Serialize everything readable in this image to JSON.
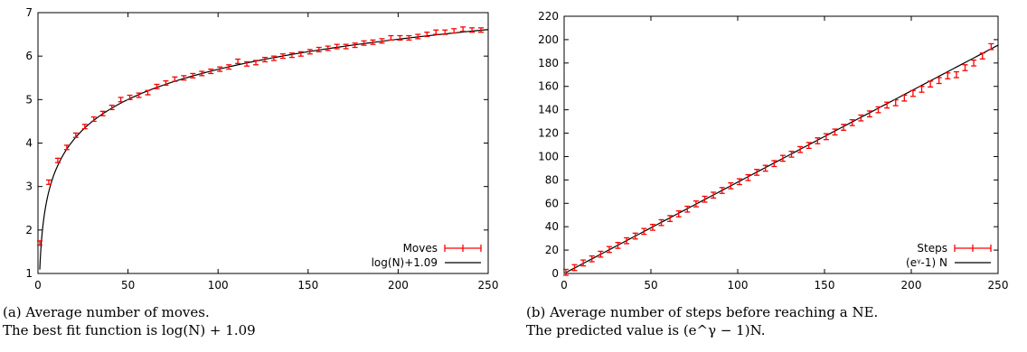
{
  "charts": [
    {
      "caption_line1": "(a) Average number of moves.",
      "caption_line2": "The best fit function is log(N) + 1.09",
      "chart_data": {
        "type": "line",
        "title": "",
        "xlabel": "",
        "ylabel": "",
        "xlim": [
          0,
          250
        ],
        "ylim": [
          1,
          7
        ],
        "xticks": [
          0,
          50,
          100,
          150,
          200,
          250
        ],
        "yticks": [
          1,
          2,
          3,
          4,
          5,
          6,
          7
        ],
        "grid": false,
        "legend_position": "bottom-right",
        "series": [
          {
            "name": "Moves",
            "kind": "errorbars",
            "color": "#ff0000",
            "x": [
              1,
              6,
              11,
              16,
              21,
              26,
              31,
              36,
              41,
              46,
              51,
              56,
              61,
              66,
              71,
              76,
              81,
              86,
              91,
              96,
              101,
              106,
              111,
              116,
              121,
              126,
              131,
              136,
              141,
              146,
              151,
              156,
              161,
              166,
              171,
              176,
              181,
              186,
              191,
              196,
              201,
              206,
              211,
              216,
              221,
              226,
              231,
              236,
              241,
              246
            ],
            "y": [
              1.7,
              3.1,
              3.6,
              3.9,
              4.18,
              4.38,
              4.55,
              4.68,
              4.82,
              5.0,
              5.05,
              5.1,
              5.16,
              5.3,
              5.38,
              5.47,
              5.5,
              5.55,
              5.6,
              5.65,
              5.7,
              5.75,
              5.88,
              5.82,
              5.85,
              5.92,
              5.95,
              6.0,
              6.02,
              6.05,
              6.1,
              6.15,
              6.18,
              6.22,
              6.22,
              6.25,
              6.3,
              6.32,
              6.35,
              6.42,
              6.42,
              6.42,
              6.45,
              6.5,
              6.55,
              6.55,
              6.58,
              6.62,
              6.6,
              6.6
            ],
            "error": 0.05
          },
          {
            "name": "log(N)+1.09",
            "kind": "line",
            "color": "#000000",
            "function": "log(x)+1.09"
          }
        ]
      }
    },
    {
      "caption_line1": "(b) Average number of steps before reaching a NE.",
      "caption_line2": "The predicted value is (e^γ − 1)N.",
      "chart_data": {
        "type": "line",
        "title": "",
        "xlabel": "",
        "ylabel": "",
        "xlim": [
          0,
          250
        ],
        "ylim": [
          0,
          220
        ],
        "xticks": [
          0,
          50,
          100,
          150,
          200,
          250
        ],
        "yticks": [
          0,
          20,
          40,
          60,
          80,
          100,
          120,
          140,
          160,
          180,
          200,
          220
        ],
        "grid": false,
        "legend_position": "bottom-right",
        "series": [
          {
            "name": "Steps",
            "kind": "errorbars",
            "color": "#ff0000",
            "x": [
              1,
              6,
              11,
              16,
              21,
              26,
              31,
              36,
              41,
              46,
              51,
              56,
              61,
              66,
              71,
              76,
              81,
              86,
              91,
              96,
              101,
              106,
              111,
              116,
              121,
              126,
              131,
              136,
              141,
              146,
              151,
              156,
              161,
              166,
              171,
              176,
              181,
              186,
              191,
              196,
              201,
              206,
              211,
              216,
              221,
              226,
              231,
              236,
              241,
              246
            ],
            "y": [
              1,
              5,
              9,
              12.5,
              16.5,
              20.5,
              24,
              28,
              32,
              36,
              39.5,
              43.5,
              47,
              51,
              55,
              59.5,
              63.5,
              67,
              71,
              75,
              78.5,
              82,
              86.5,
              90,
              94,
              98.5,
              102,
              106,
              109.5,
              113.5,
              117,
              121,
              125,
              129,
              133,
              136.5,
              140,
              144,
              146,
              150,
              154,
              157.5,
              162,
              165,
              169,
              170,
              176,
              180,
              186,
              194
            ],
            "error": 2.5
          },
          {
            "name": "(eᵞ-1) N",
            "kind": "line",
            "color": "#000000",
            "function": "0.781*x"
          }
        ]
      }
    }
  ]
}
